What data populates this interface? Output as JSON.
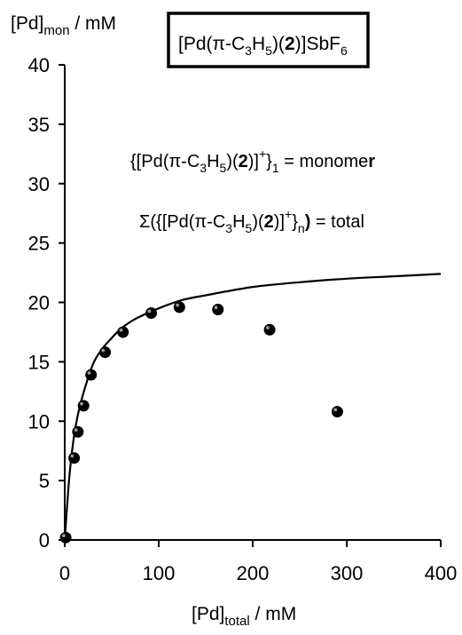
{
  "chart_data": {
    "type": "scatter",
    "title": "[Pd(π-C3H5)(2)]SbF6",
    "xlabel": "[Pd]total / mM",
    "ylabel": "[Pd]mon / mM",
    "xlim": [
      0,
      400
    ],
    "ylim": [
      0,
      40
    ],
    "xticks": [
      "0",
      "100",
      "200",
      "300",
      "400"
    ],
    "yticks": [
      "0",
      "5",
      "10",
      "15",
      "20",
      "25",
      "30",
      "35",
      "40"
    ],
    "grid": false,
    "annotations": [
      "{[Pd(π-C3H5)(2)]+}1 = monomer",
      "Σ({[Pd(π-C3H5)(2)]+}n) = total"
    ],
    "points": {
      "x": [
        1,
        10,
        14,
        20,
        28,
        43,
        62,
        92,
        122,
        163,
        218,
        290
      ],
      "y": [
        0.2,
        6.9,
        9.1,
        11.3,
        13.9,
        15.8,
        17.5,
        19.1,
        19.6,
        19.4,
        17.7,
        10.8
      ]
    },
    "fit_curve": {
      "x": [
        0,
        5,
        10,
        15,
        20,
        30,
        40,
        50,
        60,
        75,
        100,
        125,
        150,
        200,
        250,
        300,
        350,
        400
      ],
      "y": [
        0,
        5.4,
        8.8,
        10.9,
        12.4,
        14.8,
        16.1,
        17.0,
        17.8,
        18.6,
        19.5,
        20.2,
        20.6,
        21.3,
        21.7,
        22.0,
        22.2,
        22.4
      ]
    }
  }
}
